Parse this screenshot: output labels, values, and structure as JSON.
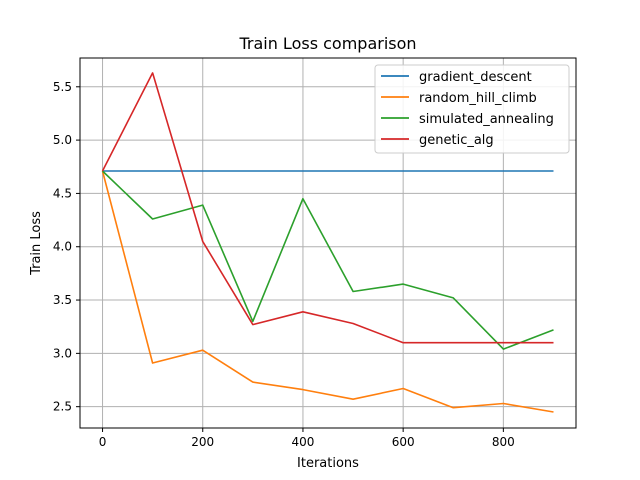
{
  "chart_data": {
    "type": "line",
    "title": "Train Loss comparison",
    "xlabel": "Iterations",
    "ylabel": "Train Loss",
    "xlim": [
      -45,
      945
    ],
    "ylim": [
      2.3,
      5.77
    ],
    "xticks": [
      0,
      200,
      400,
      600,
      800
    ],
    "yticks": [
      2.5,
      3.0,
      3.5,
      4.0,
      4.5,
      5.0,
      5.5
    ],
    "grid": true,
    "legend_position": "upper right",
    "x": [
      0,
      100,
      200,
      300,
      400,
      500,
      600,
      700,
      800,
      900
    ],
    "series": [
      {
        "name": "gradient_descent",
        "color": "#1f77b4",
        "values": [
          4.71,
          4.71,
          4.71,
          4.71,
          4.71,
          4.71,
          4.71,
          4.71,
          4.71,
          4.71
        ]
      },
      {
        "name": "random_hill_climb",
        "color": "#ff7f0e",
        "values": [
          4.71,
          2.91,
          3.03,
          2.73,
          2.66,
          2.57,
          2.67,
          2.49,
          2.53,
          2.45
        ]
      },
      {
        "name": "simulated_annealing",
        "color": "#2ca02c",
        "values": [
          4.71,
          4.26,
          4.39,
          3.3,
          4.45,
          3.58,
          3.65,
          3.52,
          3.04,
          3.22
        ]
      },
      {
        "name": "genetic_alg",
        "color": "#d62728",
        "values": [
          4.71,
          5.63,
          4.05,
          3.27,
          3.39,
          3.28,
          3.1,
          3.1,
          3.1,
          3.1
        ]
      }
    ]
  }
}
